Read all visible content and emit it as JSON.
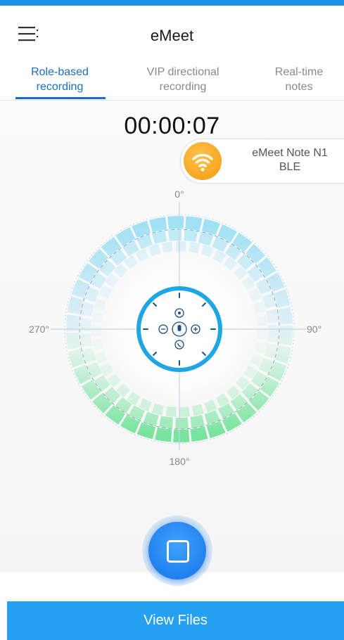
{
  "header": {
    "title": "eMeet"
  },
  "tabs": [
    {
      "label_line1": "Role-based",
      "label_line2": "recording",
      "active": true
    },
    {
      "label_line1": "VIP directional",
      "label_line2": "recording",
      "active": false
    },
    {
      "label_line1": "Real-time",
      "label_line2": "notes",
      "active": false
    }
  ],
  "recording": {
    "timer": "00:00:07"
  },
  "device": {
    "name_line1": "eMeet Note N1",
    "name_line2": "BLE",
    "icon": "wifi-icon"
  },
  "radar": {
    "labels": {
      "top": "0°",
      "right": "90°",
      "bottom": "180°",
      "left": "270°"
    }
  },
  "controls": {
    "stop_icon": "stop-square-icon"
  },
  "footer": {
    "view_files_label": "View Files"
  },
  "colors": {
    "accent": "#1d6fc2",
    "bottom_bar": "#25a0f2",
    "radar_ring": "#2aaee8",
    "device_icon": "#f5a623"
  }
}
